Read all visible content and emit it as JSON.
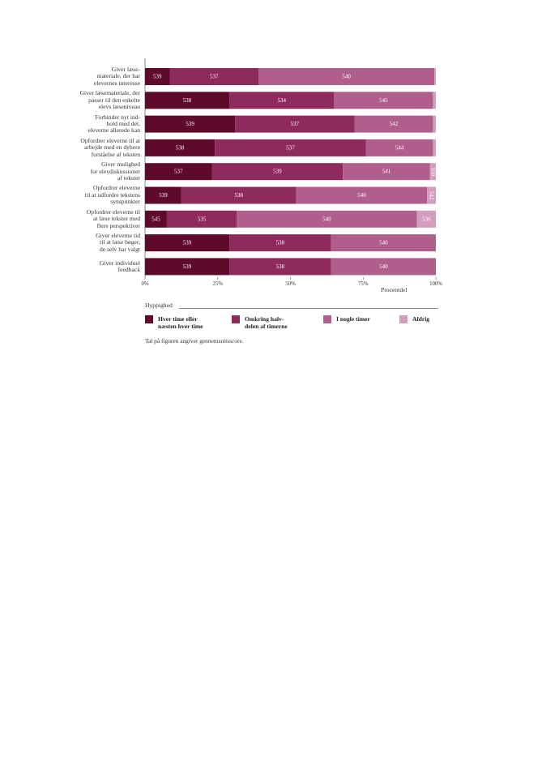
{
  "chart_data": {
    "type": "bar",
    "orientation": "horizontal",
    "stacked": true,
    "categories": [
      "Giver læse-\nmateriale, der har\nelevernes interesse",
      "Giver læsemateriale, der\npasser til den enkelte\nelevs læseniveau",
      "Forbinder nyt ind-\nhold med det,\neleverne allerede kan",
      "Opfordrer eleverne til at\narbejde med en dybere\nforståelse af teksten",
      "Giver mulighed\nfor elevdiskussioner\naf tekster",
      "Opfordrer eleverne\ntil at udfordre tekstens\nsynspunkter",
      "Opfordrer eleverne til\nat læse tekster med\nflere perspektiver",
      "Giver eleverne tid\ntil at læse bøger,\nde selv har valgt",
      "Giver individuel\nfeedback"
    ],
    "series": [
      {
        "name": "Hver time eller\nnæsten hver time",
        "color": "#5e0a2a",
        "values": [
          8.5,
          29,
          31,
          24,
          23,
          12.5,
          7.5,
          29,
          29
        ],
        "scores": [
          "539",
          "538",
          "539",
          "538",
          "537",
          "539",
          "545",
          "539",
          "539"
        ]
      },
      {
        "name": "Omkring halv-\ndelen af timerne",
        "color": "#8e2a5c",
        "values": [
          30.5,
          36,
          41,
          52,
          45,
          39.5,
          24,
          35,
          35
        ],
        "scores": [
          "537",
          "534",
          "537",
          "537",
          "539",
          "538",
          "535",
          "538",
          "538"
        ]
      },
      {
        "name": "I nogle timer",
        "color": "#b05f8c",
        "values": [
          60.5,
          34,
          27,
          23,
          30,
          45,
          62,
          36,
          36
        ],
        "scores": [
          "540",
          "545",
          "542",
          "544",
          "541",
          "540",
          "540",
          "540",
          "540"
        ]
      },
      {
        "name": "Aldrig",
        "color": "#d39ebd",
        "values": [
          0.5,
          1,
          1,
          1,
          2,
          3,
          6.5,
          0,
          0
        ],
        "scores": [
          "",
          "",
          "",
          "",
          "550",
          "542",
          "536",
          "",
          ""
        ]
      }
    ],
    "x_ticks": [
      "0%",
      "25%",
      "50%",
      "75%",
      "100%"
    ],
    "xlim": [
      0,
      100
    ],
    "xlabel": "Procentdel",
    "legend_title": "Hyppighed",
    "legend_position": "bottom",
    "grid": false,
    "note": "Tal på figuren angiver gennemsnitsscore."
  }
}
